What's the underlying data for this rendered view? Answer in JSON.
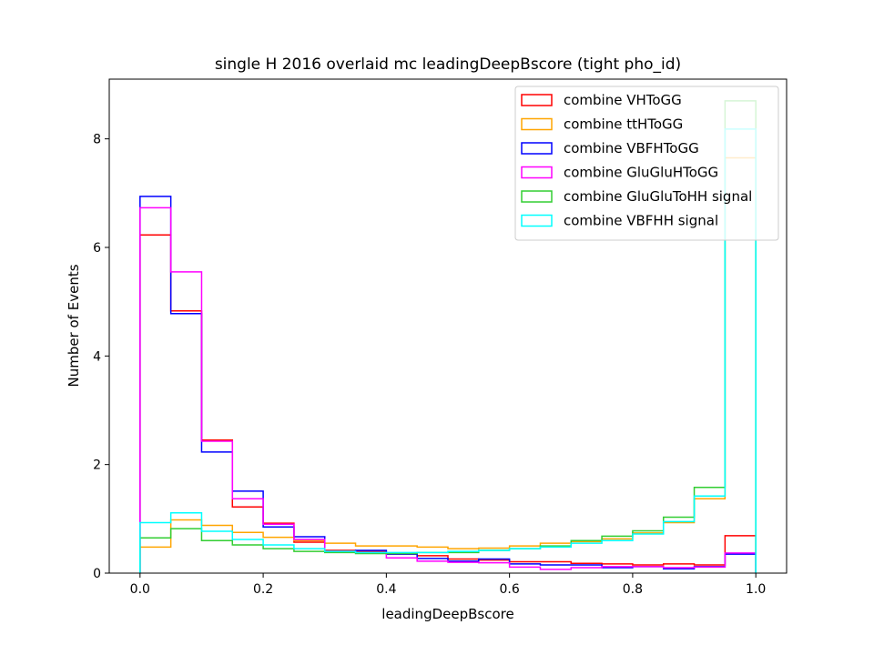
{
  "chart_data": {
    "type": "histogram-step",
    "title": "single H 2016 overlaid mc leadingDeepBscore (tight pho_id)",
    "xlabel": "leadingDeepBscore",
    "ylabel": "Number of Events",
    "xlim": [
      -0.05,
      1.05
    ],
    "ylim": [
      0,
      9.1
    ],
    "xticks": [
      0.0,
      0.2,
      0.4,
      0.6,
      0.8,
      1.0
    ],
    "xtick_labels": [
      "0.0",
      "0.2",
      "0.4",
      "0.6",
      "0.8",
      "1.0"
    ],
    "yticks": [
      0,
      2,
      4,
      6,
      8
    ],
    "ytick_labels": [
      "0",
      "2",
      "4",
      "6",
      "8"
    ],
    "legend_position": "top-right",
    "bin_edges": [
      0.0,
      0.05,
      0.1,
      0.15,
      0.2,
      0.25,
      0.3,
      0.35,
      0.4,
      0.45,
      0.5,
      0.55,
      0.6,
      0.65,
      0.7,
      0.75,
      0.8,
      0.85,
      0.9,
      0.95,
      1.0
    ],
    "series": [
      {
        "name": "combine VHToGG",
        "color": "#ff0000",
        "values": [
          6.23,
          4.83,
          2.45,
          1.22,
          0.92,
          0.57,
          0.42,
          0.4,
          0.35,
          0.32,
          0.26,
          0.24,
          0.21,
          0.21,
          0.18,
          0.17,
          0.15,
          0.17,
          0.15,
          0.69
        ]
      },
      {
        "name": "combine ttHToGG",
        "color": "#ffa500",
        "values": [
          0.48,
          0.98,
          0.88,
          0.75,
          0.66,
          0.6,
          0.55,
          0.5,
          0.5,
          0.48,
          0.45,
          0.46,
          0.5,
          0.55,
          0.58,
          0.63,
          0.74,
          0.93,
          1.37,
          7.65
        ]
      },
      {
        "name": "combine VBFHToGG",
        "color": "#0000ff",
        "values": [
          6.94,
          4.78,
          2.23,
          1.51,
          0.85,
          0.67,
          0.4,
          0.42,
          0.35,
          0.27,
          0.22,
          0.26,
          0.17,
          0.15,
          0.15,
          0.1,
          0.12,
          0.08,
          0.12,
          0.35
        ]
      },
      {
        "name": "combine GluGluHToGG",
        "color": "#ff00ff",
        "values": [
          6.73,
          5.55,
          2.43,
          1.37,
          0.9,
          0.62,
          0.4,
          0.38,
          0.28,
          0.22,
          0.2,
          0.19,
          0.11,
          0.07,
          0.1,
          0.12,
          0.12,
          0.1,
          0.11,
          0.37
        ]
      },
      {
        "name": "combine GluGluToHH signal",
        "color": "#32cd32",
        "values": [
          0.65,
          0.82,
          0.6,
          0.52,
          0.45,
          0.4,
          0.38,
          0.36,
          0.36,
          0.38,
          0.38,
          0.42,
          0.45,
          0.5,
          0.6,
          0.68,
          0.78,
          1.03,
          1.58,
          8.7
        ]
      },
      {
        "name": "combine VBFHH signal",
        "color": "#00ffff",
        "values": [
          0.93,
          1.11,
          0.77,
          0.62,
          0.52,
          0.45,
          0.4,
          0.38,
          0.38,
          0.38,
          0.4,
          0.42,
          0.45,
          0.48,
          0.55,
          0.6,
          0.72,
          0.95,
          1.42,
          8.18
        ]
      }
    ]
  }
}
